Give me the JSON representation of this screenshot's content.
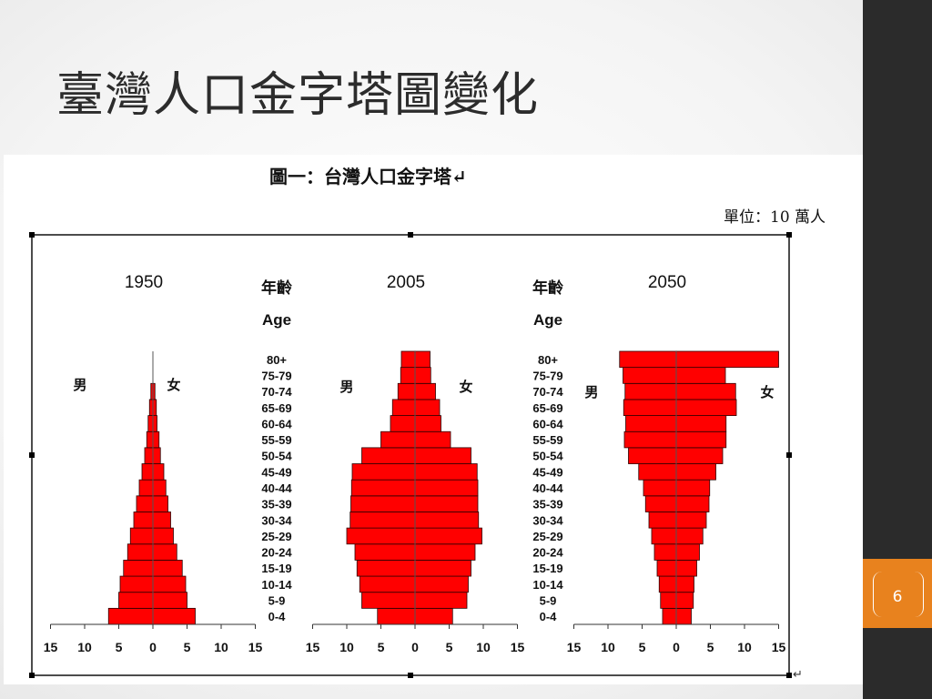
{
  "slide": {
    "title": "臺灣人口金字塔圖變化",
    "page_number": "6"
  },
  "figure": {
    "caption": "圖一：台灣人口金字塔↵",
    "unit": "單位：10 萬人",
    "corner_mark": "↵"
  },
  "colors": {
    "bar_fill": "#ff0000",
    "bar_stroke": "#2a0000",
    "accent": "#e8821e",
    "sidebar": "#2b2b2b"
  },
  "chart_data": {
    "type": "bar",
    "orientation": "horizontal-population-pyramid",
    "age_header": "年齡",
    "age_header_en": "Age",
    "male_label": "男",
    "female_label": "女",
    "xlim": [
      -15,
      15
    ],
    "xticks": [
      15,
      10,
      5,
      0,
      5,
      10,
      15
    ],
    "age_groups": [
      "0-4",
      "5-9",
      "10-14",
      "15-19",
      "20-24",
      "25-29",
      "30-34",
      "35-39",
      "40-44",
      "45-49",
      "50-54",
      "55-59",
      "60-64",
      "65-69",
      "70-74",
      "75-79",
      "80+"
    ],
    "charts": [
      {
        "title": "1950",
        "male": [
          6.5,
          5.0,
          4.8,
          4.3,
          3.7,
          3.3,
          2.8,
          2.4,
          2.0,
          1.6,
          1.2,
          0.9,
          0.7,
          0.5,
          0.3,
          0.0,
          0.0
        ],
        "female": [
          6.2,
          5.0,
          4.8,
          4.3,
          3.5,
          3.0,
          2.6,
          2.2,
          1.9,
          1.6,
          1.1,
          0.9,
          0.6,
          0.5,
          0.3,
          0.0,
          0.0
        ]
      },
      {
        "title": "2005",
        "male": [
          5.5,
          7.8,
          8.1,
          8.5,
          8.8,
          10.0,
          9.5,
          9.4,
          9.3,
          9.2,
          7.8,
          5.0,
          3.6,
          3.3,
          2.5,
          2.1,
          2.0
        ],
        "female": [
          5.5,
          7.6,
          7.8,
          8.2,
          8.8,
          9.8,
          9.3,
          9.2,
          9.2,
          9.1,
          8.2,
          5.2,
          3.8,
          3.6,
          3.0,
          2.3,
          2.2
        ]
      },
      {
        "title": "2050",
        "male": [
          2.0,
          2.3,
          2.5,
          2.8,
          3.2,
          3.6,
          4.0,
          4.5,
          4.8,
          5.5,
          7.0,
          7.6,
          7.4,
          7.7,
          7.5,
          7.8,
          8.3
        ],
        "female": [
          2.2,
          2.5,
          2.6,
          3.0,
          3.4,
          3.9,
          4.4,
          4.8,
          4.9,
          5.8,
          6.8,
          7.3,
          7.3,
          8.8,
          8.7,
          7.2,
          15.0
        ]
      }
    ]
  }
}
